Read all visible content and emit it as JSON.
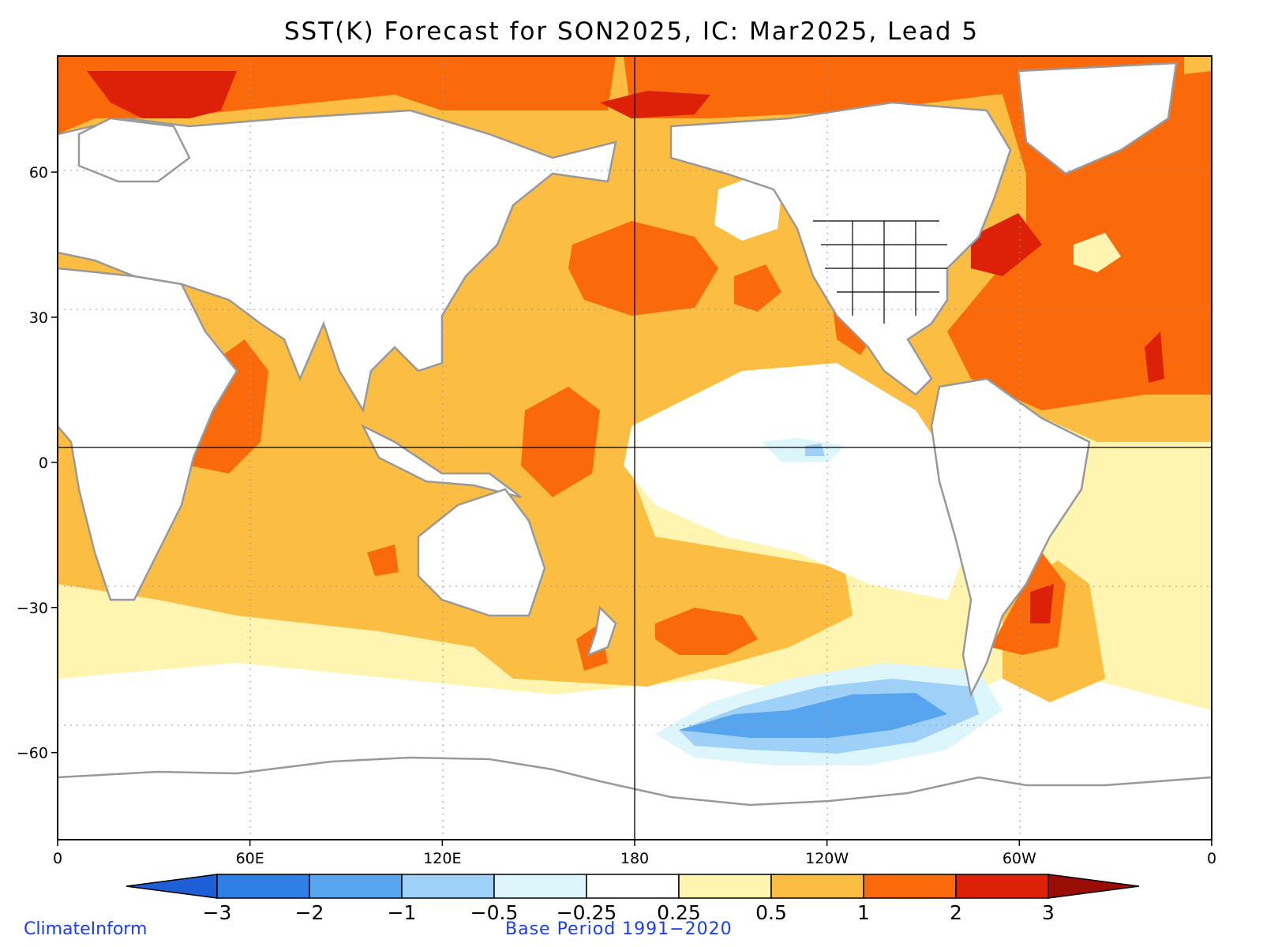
{
  "title": "SST(K) Forecast for SON2025, IC: Mar2025, Lead 5",
  "lon_ticks": [
    "0",
    "60E",
    "120E",
    "180",
    "120W",
    "60W",
    "0"
  ],
  "lat_ticks": [
    "60",
    "30",
    "0",
    "-30",
    "-60"
  ],
  "colorbar": {
    "labels": [
      "-3",
      "-2",
      "-1",
      "-0.5",
      "-0.25",
      "0.25",
      "0.5",
      "1",
      "2",
      "3"
    ],
    "colors": [
      "#1f5fd6",
      "#2f7fe6",
      "#58a5ef",
      "#9ed0f8",
      "#dcf6fc",
      "#ffffff",
      "#fff5b0",
      "#fbbd42",
      "#fb6a0a",
      "#dd2008",
      "#9a0d04"
    ]
  },
  "footer": {
    "left": "ClimateInform",
    "center": "Base Period 1991-2020"
  },
  "map_colors": {
    "land": "#ffffff",
    "coast": "#999999",
    "grid": "#999999",
    "frame": "#000000"
  }
}
